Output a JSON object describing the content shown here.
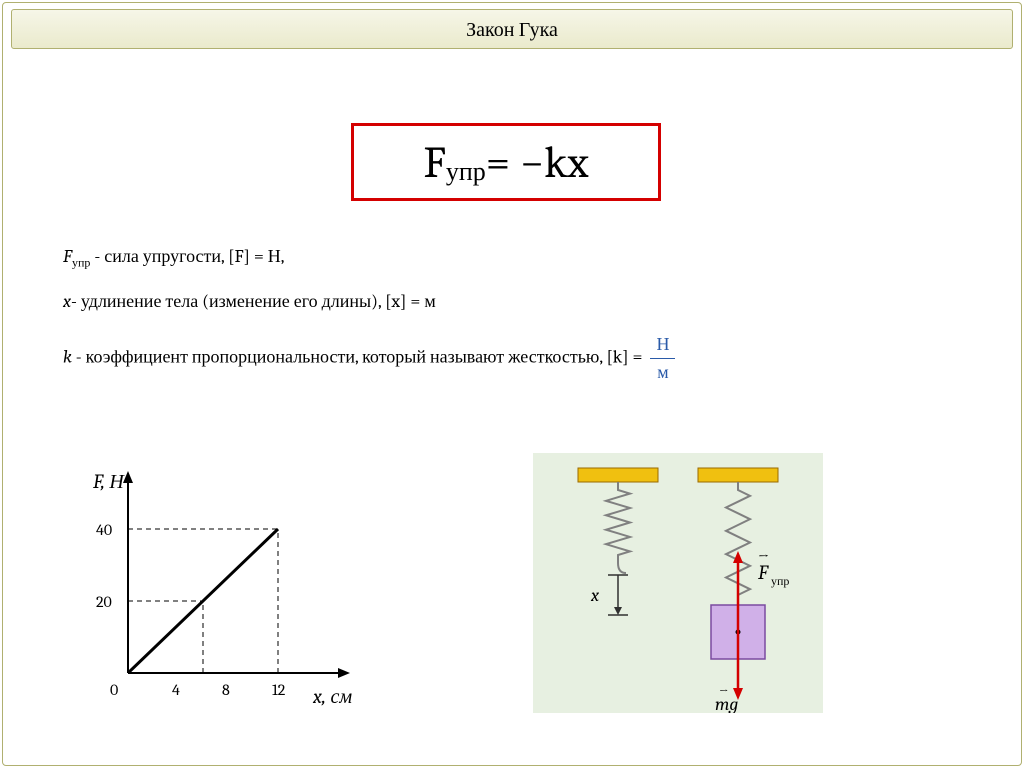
{
  "title": "Закон Гука",
  "formula": {
    "lhs_base": "F",
    "lhs_sub": "упр",
    "rhs": " = −kx"
  },
  "defs": {
    "line1_sym": "F",
    "line1_sub": "упр",
    "line1_text": " - сила упругости, [F] = Н,",
    "line2_sym": "x",
    "line2_text": "- удлинение тела (изменение его длины), [x] = м",
    "line3_sym": "k",
    "line3_text": " - коэффициент пропорциональности, который называют жесткостью, [k] = ",
    "frac_num": "Н",
    "frac_den": "м"
  },
  "chart": {
    "type": "line",
    "y_label": "F, Н",
    "x_label": "x, см",
    "y_ticks": [
      20,
      40
    ],
    "x_ticks": [
      4,
      8,
      12
    ],
    "y_max": 50,
    "x_max": 16,
    "line": {
      "points": [
        [
          0,
          0
        ],
        [
          12,
          40
        ]
      ],
      "color": "#000000",
      "width": 3
    },
    "dashed": [
      {
        "from": [
          0,
          20
        ],
        "to": [
          6,
          20
        ]
      },
      {
        "from": [
          6,
          0
        ],
        "to": [
          6,
          20
        ]
      },
      {
        "from": [
          0,
          40
        ],
        "to": [
          12,
          40
        ]
      },
      {
        "from": [
          12,
          0
        ],
        "to": [
          12,
          40
        ]
      }
    ],
    "axis_color": "#000000",
    "tick_font": 16,
    "label_font": 20
  },
  "spring_diagram": {
    "background": "#e7f0e1",
    "ceiling_color": "#f0c010",
    "ceiling_border": "#9a6a00",
    "spring_color": "#808080",
    "mass_color": "#d0b0e8",
    "mass_border": "#7a4aa0",
    "arrow_up_color": "#d40000",
    "arrow_down_color": "#d40000",
    "x_bracket_color": "#303030",
    "labels": {
      "x": "x",
      "f_upr": "F",
      "f_upr_sub": "упр",
      "mg": "mg",
      "mg_arrow": "→"
    }
  }
}
